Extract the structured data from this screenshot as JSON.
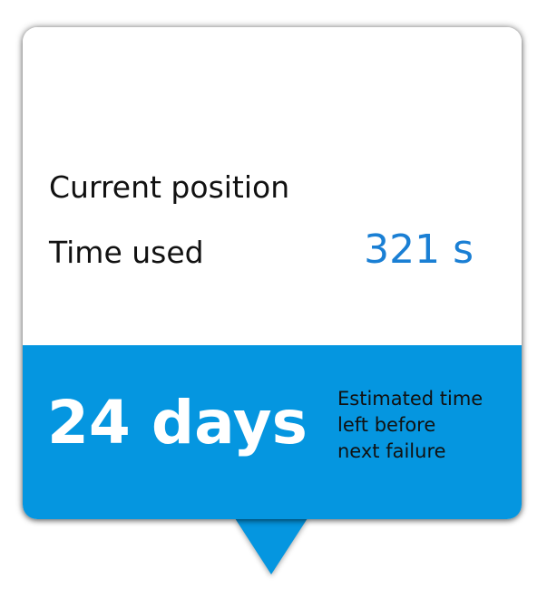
{
  "panel": {
    "current_position_label": "Current position",
    "time_used_label": "Time used",
    "time_used_value": "321 s",
    "estimate_value": "24 days",
    "estimate_caption_lines": [
      "Estimated time",
      "left before",
      "next failure"
    ]
  },
  "colors": {
    "accent": "#0596e0",
    "value_text": "#1a7fd4"
  }
}
